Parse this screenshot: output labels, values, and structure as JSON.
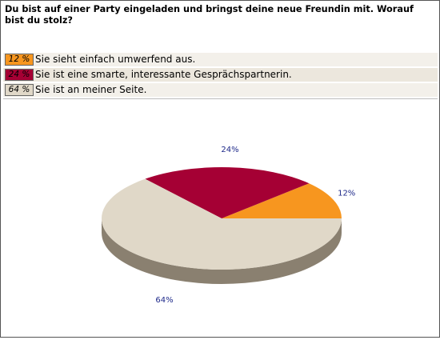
{
  "question": "Du bist auf einer Party eingeladen und bringst deine neue Freundin mit. Worauf bist du stolz?",
  "answers": [
    {
      "percent_label": "12 %",
      "text": "Sie sieht einfach umwerfend aus.",
      "color": "#f7961f",
      "row_bg": "#f3f0ea"
    },
    {
      "percent_label": "24 %",
      "text": "Sie ist eine smarte, interessante Gesprächspartnerin.",
      "color": "#a50034",
      "row_bg": "#ece7dd"
    },
    {
      "percent_label": "64 %",
      "text": "Sie ist an meiner Seite.",
      "color": "#e0d8c8",
      "row_bg": "#f3f0ea"
    }
  ],
  "chart_data": {
    "type": "pie",
    "title": "",
    "labels": [
      "Sie sieht einfach umwerfend aus.",
      "Sie ist eine smarte, interessante Gesprächspartnerin.",
      "Sie ist an meiner Seite."
    ],
    "values": [
      12,
      24,
      64
    ],
    "value_labels": [
      "12%",
      "24%",
      "64%"
    ],
    "colors": [
      "#f7961f",
      "#a50034",
      "#e0d8c8"
    ],
    "side_color": "#8a8070",
    "label_color": "#1f2a8a",
    "style": "3d"
  }
}
